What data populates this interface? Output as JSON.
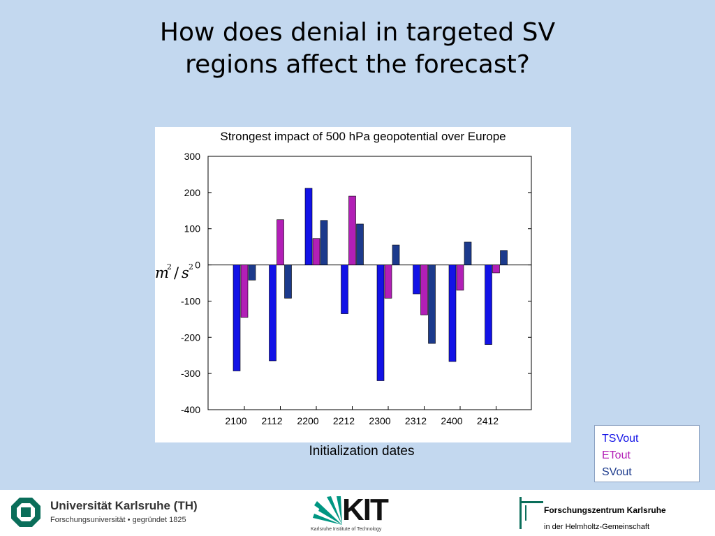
{
  "slide": {
    "title_line1": "How does denial in targeted SV",
    "title_line2": "regions affect the forecast?"
  },
  "chart_data": {
    "type": "bar",
    "title": "Strongest impact of 500 hPa geopotential over Europe",
    "xlabel": "Initialization dates",
    "ylabel": "m²/s²",
    "ylim": [
      -400,
      300
    ],
    "yticks": [
      300,
      200,
      100,
      0,
      -100,
      -200,
      -300,
      -400
    ],
    "grid": false,
    "legend_position": "bottom-right outside",
    "categories": [
      "2100",
      "2112",
      "2200",
      "2212",
      "2300",
      "2312",
      "2400",
      "2412"
    ],
    "series": [
      {
        "name": "TSVout",
        "color": "#1212e6",
        "values": [
          -293,
          -265,
          212,
          -135,
          -320,
          -80,
          -267,
          -220
        ]
      },
      {
        "name": "ETout",
        "color": "#b21fb6",
        "values": [
          -145,
          125,
          73,
          190,
          -92,
          -138,
          -70,
          -22
        ]
      },
      {
        "name": "SVout",
        "color": "#1c3a8c",
        "values": [
          -42,
          -92,
          123,
          113,
          55,
          -217,
          63,
          40
        ]
      }
    ]
  },
  "footer": {
    "university_name": "Universität Karlsruhe (TH)",
    "university_tagline": "Forschungsuniversität • gegründet 1825",
    "kit_logo_text": "KIT",
    "kit_subtitle": "Karlsruhe Institute of Technology",
    "fzk_name": "Forschungszentrum Karlsruhe",
    "fzk_subtitle": "in der Helmholtz-Gemeinschaft"
  },
  "colors": {
    "background": "#c3d8ef",
    "kit_green": "#009682"
  }
}
